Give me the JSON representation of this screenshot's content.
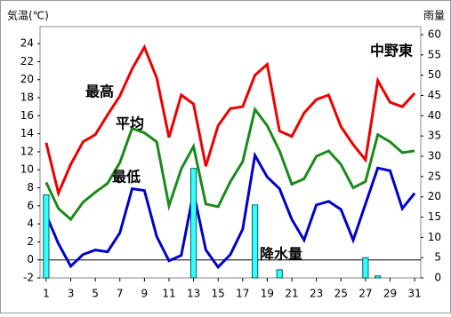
{
  "chart_data": {
    "type": "line_bar",
    "title": "中野東",
    "ylabel": "気温(℃)",
    "y2label": "雨量",
    "x": [
      1,
      2,
      3,
      4,
      5,
      6,
      7,
      8,
      9,
      10,
      11,
      12,
      13,
      14,
      15,
      16,
      17,
      18,
      19,
      20,
      21,
      22,
      23,
      24,
      25,
      26,
      27,
      28,
      29,
      30,
      31
    ],
    "xlim": [
      0.5,
      31.5
    ],
    "xticks": [
      1,
      3,
      5,
      7,
      9,
      11,
      13,
      15,
      17,
      19,
      21,
      23,
      25,
      27,
      29,
      31
    ],
    "ylim": [
      -2,
      25
    ],
    "yticks": [
      -2,
      0,
      2,
      4,
      6,
      8,
      10,
      12,
      14,
      16,
      18,
      20,
      22,
      24
    ],
    "y2lim": [
      0,
      60
    ],
    "y2ticks": [
      0,
      5,
      10,
      15,
      20,
      25,
      30,
      35,
      40,
      45,
      50,
      55,
      60
    ],
    "series": [
      {
        "name": "最高",
        "color": "#ee0000",
        "kind": "line",
        "values": [
          13,
          7.4,
          10.6,
          13.1,
          13.9,
          16.1,
          18.2,
          21.2,
          23.6,
          20.2,
          13.6,
          18.3,
          17.3,
          10.4,
          14.9,
          16.8,
          17,
          20.5,
          21.7,
          14.3,
          13.7,
          16.3,
          17.8,
          18.3,
          14.8,
          12.8,
          11.1,
          19.9,
          17.5,
          17,
          18.5
        ]
      },
      {
        "name": "平均",
        "color": "#1a8a1a",
        "kind": "line",
        "values": [
          8.6,
          5.7,
          4.5,
          6.4,
          7.5,
          8.5,
          10.8,
          14.6,
          14.1,
          13.1,
          6,
          10.1,
          12.6,
          6.2,
          5.9,
          8.7,
          10.9,
          16.7,
          14.9,
          12.1,
          8.4,
          9,
          11.5,
          12.1,
          10.6,
          8,
          8.7,
          13.9,
          13.1,
          11.9,
          12.1
        ]
      },
      {
        "name": "最低",
        "color": "#0000cc",
        "kind": "line",
        "values": [
          5,
          1.8,
          -0.7,
          0.6,
          1.1,
          0.9,
          3,
          7.9,
          7.7,
          2.6,
          -0.1,
          0.5,
          7.5,
          1.1,
          -0.8,
          0.6,
          3.4,
          11.6,
          9.2,
          7.9,
          4.5,
          2.2,
          6.1,
          6.5,
          5.6,
          2.2,
          6.2,
          10.2,
          9.9,
          5.7,
          7.4
        ]
      },
      {
        "name": "降水量",
        "color": "#33ffff",
        "kind": "bar",
        "axis": "y2",
        "values": [
          20.5,
          0,
          0,
          0,
          0,
          0,
          0,
          0,
          0,
          0,
          0,
          0,
          27,
          0,
          0,
          0,
          0,
          18,
          0,
          2,
          0,
          0,
          0,
          0,
          0,
          0,
          5,
          0.5,
          0,
          0,
          0
        ]
      }
    ]
  }
}
